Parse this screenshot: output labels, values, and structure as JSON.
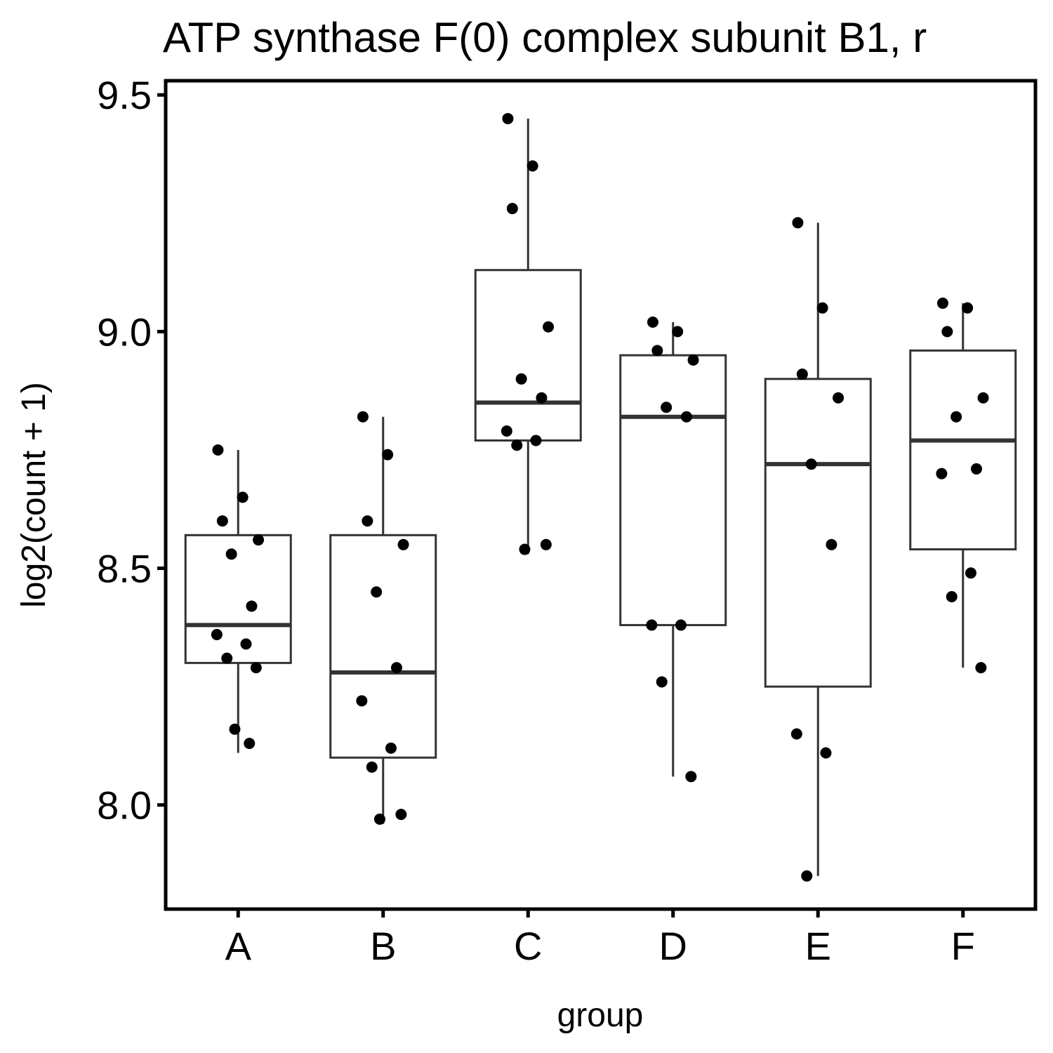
{
  "chart_data": {
    "type": "box",
    "title": "ATP synthase F(0) complex subunit B1, r",
    "xlabel": "group",
    "ylabel": "log2(count + 1)",
    "ylim": [
      7.78,
      9.53
    ],
    "yticks": [
      "8.0",
      "8.5",
      "9.0",
      "9.5"
    ],
    "grid": false,
    "categories": [
      "A",
      "B",
      "C",
      "D",
      "E",
      "F"
    ],
    "boxes": [
      {
        "group": "A",
        "whisker_low": 8.11,
        "q1": 8.3,
        "median": 8.38,
        "q3": 8.57,
        "whisker_high": 8.75,
        "points": [
          8.75,
          8.65,
          8.6,
          8.56,
          8.53,
          8.42,
          8.36,
          8.34,
          8.31,
          8.29,
          8.16,
          8.13
        ]
      },
      {
        "group": "B",
        "whisker_low": 7.96,
        "q1": 8.1,
        "median": 8.28,
        "q3": 8.57,
        "whisker_high": 8.82,
        "points": [
          8.82,
          8.74,
          8.6,
          8.55,
          8.45,
          8.29,
          8.22,
          8.12,
          8.08,
          7.98,
          7.97
        ]
      },
      {
        "group": "C",
        "whisker_low": 8.53,
        "q1": 8.77,
        "median": 8.85,
        "q3": 9.13,
        "whisker_high": 9.45,
        "points": [
          9.45,
          9.35,
          9.26,
          9.01,
          8.9,
          8.86,
          8.79,
          8.77,
          8.76,
          8.55,
          8.54
        ]
      },
      {
        "group": "D",
        "whisker_low": 8.06,
        "q1": 8.38,
        "median": 8.82,
        "q3": 8.95,
        "whisker_high": 9.02,
        "points": [
          9.02,
          9.0,
          8.96,
          8.94,
          8.84,
          8.82,
          8.38,
          8.38,
          8.26,
          8.06
        ]
      },
      {
        "group": "E",
        "whisker_low": 7.85,
        "q1": 8.25,
        "median": 8.72,
        "q3": 8.9,
        "whisker_high": 9.23,
        "points": [
          9.23,
          9.05,
          8.91,
          8.86,
          8.72,
          8.55,
          8.15,
          8.11,
          7.85
        ]
      },
      {
        "group": "F",
        "whisker_low": 8.29,
        "q1": 8.54,
        "median": 8.77,
        "q3": 8.96,
        "whisker_high": 9.06,
        "points": [
          9.06,
          9.05,
          9.0,
          8.86,
          8.82,
          8.71,
          8.7,
          8.49,
          8.44,
          8.29
        ]
      }
    ]
  }
}
